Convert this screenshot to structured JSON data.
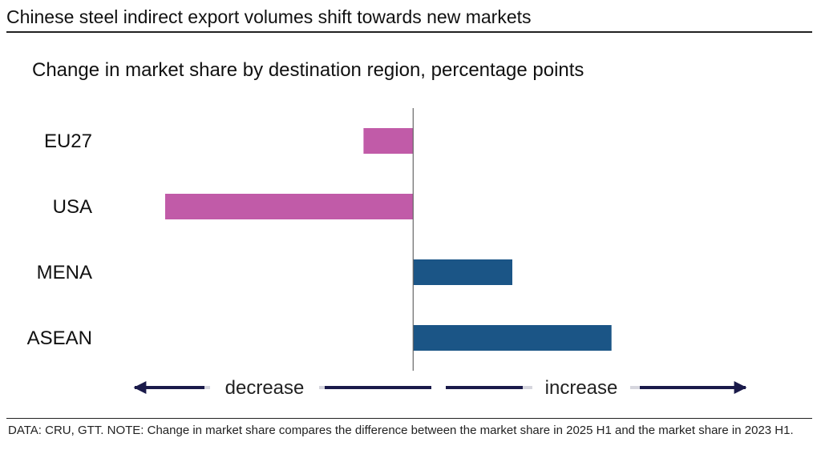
{
  "title": "Chinese steel indirect export volumes shift towards new markets",
  "chart_data": {
    "type": "bar",
    "orientation": "horizontal",
    "title": "Change in market share by destination region, percentage points",
    "categories": [
      "EU27",
      "USA",
      "MENA",
      "ASEAN"
    ],
    "values": [
      -2,
      -10,
      4,
      8
    ],
    "xlim": [
      -10,
      10.5
    ],
    "axis_labels": false,
    "colors": {
      "negative": "#C15BA8",
      "positive": "#1B5586"
    },
    "direction_labels": {
      "negative": "decrease",
      "positive": "increase"
    }
  },
  "footer_note": "DATA: CRU, GTT. NOTE: Change in market share compares the difference between the market share in 2025 H1 and the market share in 2023 H1."
}
